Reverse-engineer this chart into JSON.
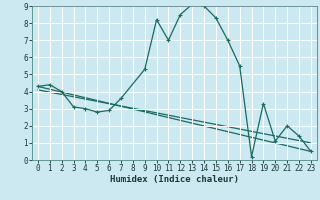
{
  "title": "",
  "xlabel": "Humidex (Indice chaleur)",
  "bg_color": "#cce8f0",
  "grid_color": "#ffffff",
  "line_color": "#1a6b60",
  "xlim": [
    -0.5,
    23.5
  ],
  "ylim": [
    0,
    9
  ],
  "xticks": [
    0,
    1,
    2,
    3,
    4,
    5,
    6,
    7,
    8,
    9,
    10,
    11,
    12,
    13,
    14,
    15,
    16,
    17,
    18,
    19,
    20,
    21,
    22,
    23
  ],
  "yticks": [
    0,
    1,
    2,
    3,
    4,
    5,
    6,
    7,
    8,
    9
  ],
  "series_main": [
    [
      0,
      4.3
    ],
    [
      1,
      4.4
    ],
    [
      2,
      4.0
    ],
    [
      3,
      3.1
    ],
    [
      4,
      3.0
    ],
    [
      5,
      2.8
    ],
    [
      6,
      2.9
    ],
    [
      7,
      3.6
    ],
    [
      9,
      5.3
    ],
    [
      10,
      8.2
    ],
    [
      11,
      7.0
    ],
    [
      12,
      8.5
    ],
    [
      13,
      9.1
    ],
    [
      14,
      9.0
    ],
    [
      15,
      8.3
    ],
    [
      16,
      7.0
    ],
    [
      17,
      5.5
    ],
    [
      18,
      0.2
    ],
    [
      19,
      3.3
    ],
    [
      20,
      1.1
    ],
    [
      21,
      2.0
    ],
    [
      22,
      1.4
    ],
    [
      23,
      0.5
    ]
  ],
  "line1": [
    [
      0,
      4.3
    ],
    [
      23,
      0.5
    ]
  ],
  "line2": [
    [
      0,
      4.1
    ],
    [
      23,
      1.0
    ]
  ]
}
